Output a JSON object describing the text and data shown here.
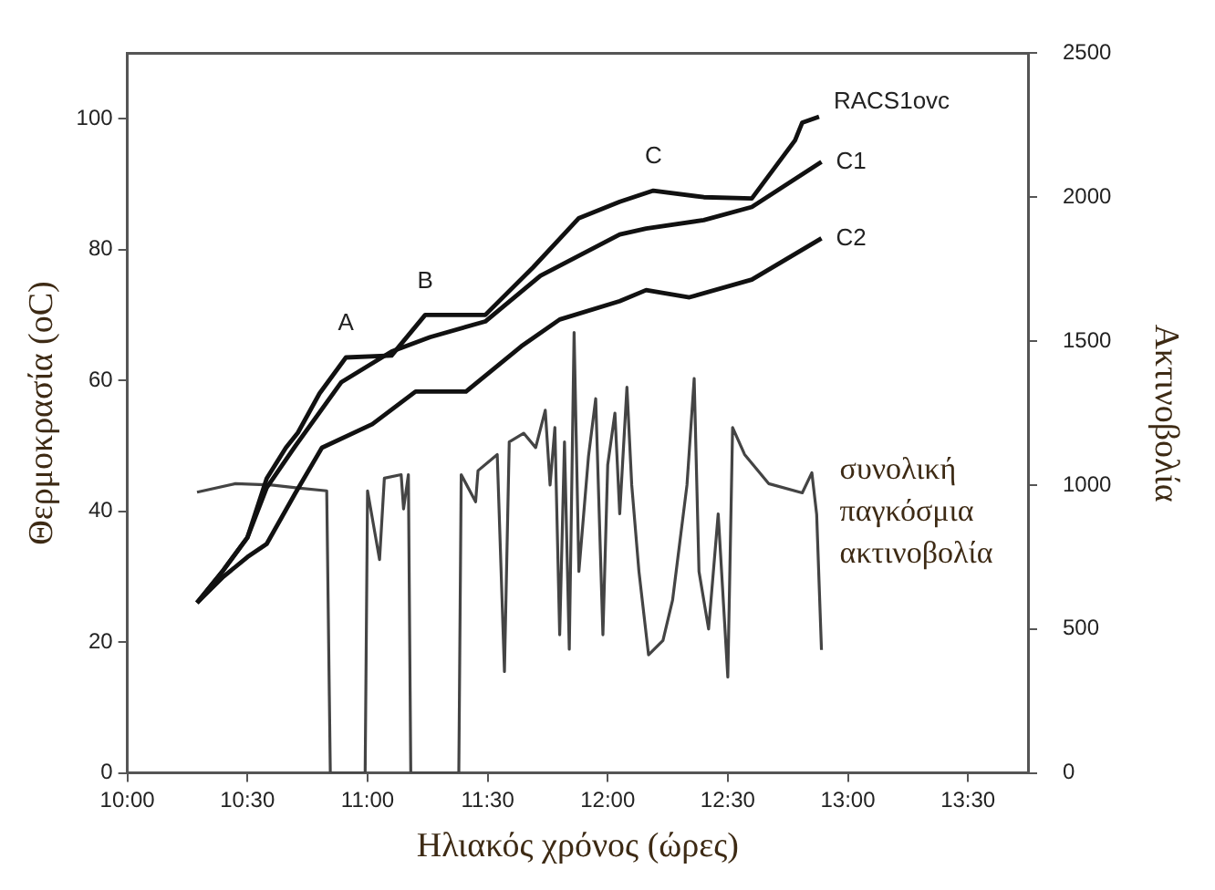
{
  "chart_data": {
    "type": "line",
    "xlabel": "Ηλιακός χρόνος (ώρες)",
    "ylabel": "Θερμοκρασία (oC)",
    "y2label": "Ακτινοβολία",
    "xlim": [
      10,
      13.75
    ],
    "xticks": [
      {
        "value": 10,
        "label": "10:00"
      },
      {
        "value": 10.5,
        "label": "10:30"
      },
      {
        "value": 11,
        "label": "11:00"
      },
      {
        "value": 11.5,
        "label": "11:30"
      },
      {
        "value": 12,
        "label": "12:00"
      },
      {
        "value": 12.5,
        "label": "12:30"
      },
      {
        "value": 13,
        "label": "13:00"
      },
      {
        "value": 13.5,
        "label": "13:30"
      }
    ],
    "ylim": [
      0,
      110
    ],
    "yticks": [
      0,
      20,
      40,
      60,
      80,
      100
    ],
    "y2lim": [
      0,
      2500
    ],
    "y2ticks": [
      0,
      500,
      1000,
      1500,
      2000,
      2500
    ],
    "grid": false,
    "legend": false,
    "marker": "none",
    "line_style": "solid",
    "series": [
      {
        "name": "RACS1ovc",
        "color": "#111111",
        "x": [
          10.29,
          10.4,
          10.5,
          10.58,
          10.66,
          10.71,
          10.8,
          10.91,
          11.1,
          11.24,
          11.49,
          11.69,
          11.88,
          12.05,
          12.19,
          12.4,
          12.6,
          12.78,
          12.81,
          12.88
        ],
        "values": [
          26,
          31,
          36,
          45,
          49.7,
          52,
          58,
          63.5,
          63.8,
          70,
          70,
          77.3,
          84.8,
          87.3,
          89,
          88,
          87.8,
          96.7,
          99.4,
          100.3
        ]
      },
      {
        "name": "C1",
        "color": "#111111",
        "x": [
          10.29,
          10.4,
          10.5,
          10.58,
          10.7,
          10.89,
          11.1,
          11.26,
          11.49,
          11.72,
          12.05,
          12.16,
          12.4,
          12.6,
          12.89
        ],
        "values": [
          26,
          31,
          36,
          43.6,
          50,
          59.7,
          64.4,
          66.6,
          69,
          76,
          82.3,
          83.2,
          84.5,
          86.5,
          93.4
        ]
      },
      {
        "name": "C2",
        "color": "#111111",
        "x": [
          10.29,
          10.4,
          10.5,
          10.58,
          10.7,
          10.81,
          11.02,
          11.2,
          11.41,
          11.64,
          11.8,
          12.05,
          12.16,
          12.34,
          12.6,
          12.89
        ],
        "values": [
          26,
          30,
          33,
          35,
          42.8,
          49.7,
          53.3,
          58.3,
          58.3,
          65.2,
          69.3,
          72.1,
          73.8,
          72.7,
          75.4,
          81.7
        ]
      },
      {
        "name": "συνολική παγκόσμια ακτινοβολία",
        "color": "#444444",
        "axis": "y2",
        "x": [
          10.29,
          10.45,
          10.6,
          10.71,
          10.83,
          10.845,
          10.99,
          11.0,
          11.05,
          11.07,
          11.14,
          11.15,
          11.17,
          11.18,
          11.38,
          11.39,
          11.45,
          11.46,
          11.54,
          11.57,
          11.59,
          11.65,
          11.7,
          11.74,
          11.76,
          11.78,
          11.8,
          11.82,
          11.84,
          11.86,
          11.88,
          11.92,
          11.95,
          11.98,
          12.0,
          12.03,
          12.05,
          12.08,
          12.1,
          12.13,
          12.17,
          12.23,
          12.27,
          12.3,
          12.33,
          12.36,
          12.38,
          12.42,
          12.46,
          12.5,
          12.52,
          12.57,
          12.67,
          12.81,
          12.85,
          12.87,
          12.89
        ],
        "values": [
          975,
          1005,
          1000,
          990,
          980,
          0,
          0,
          980,
          741,
          1024,
          1036,
          917,
          1036,
          0,
          0,
          1036,
          942,
          1050,
          1106,
          352,
          1150,
          1180,
          1130,
          1260,
          1000,
          1200,
          480,
          1150,
          430,
          1530,
          700,
          1100,
          1300,
          480,
          1070,
          1250,
          900,
          1340,
          1000,
          700,
          410,
          460,
          600,
          800,
          1000,
          1370,
          700,
          500,
          900,
          333,
          1200,
          1106,
          1005,
          973,
          1043,
          898,
          427
        ]
      }
    ],
    "annotations": [
      {
        "text": "A",
        "x": 10.91,
        "y": 63.5
      },
      {
        "text": "B",
        "x": 11.24,
        "y": 70
      },
      {
        "text": "C",
        "x": 12.19,
        "y": 89
      }
    ]
  }
}
